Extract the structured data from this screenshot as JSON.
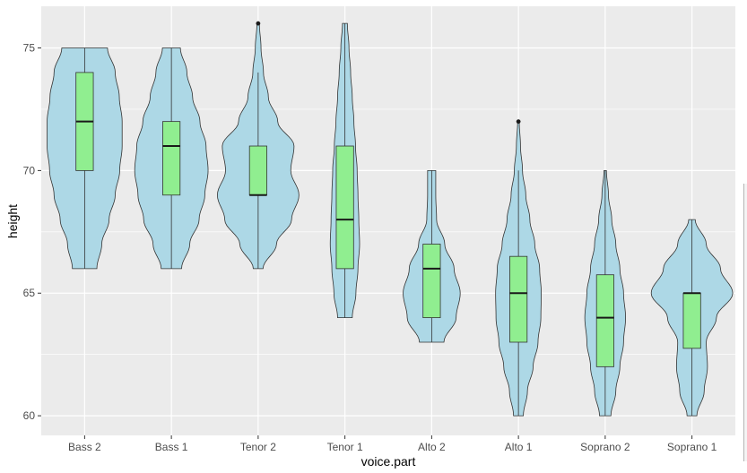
{
  "chart_data": {
    "type": "violin",
    "title": "",
    "xlabel": "voice.part",
    "ylabel": "height",
    "ylim": [
      59.2,
      76.7
    ],
    "yticks": [
      60,
      65,
      70,
      75
    ],
    "grid": true,
    "colors": {
      "panel": "#ebebeb",
      "grid": "#ffffff",
      "violin_fill": "#add8e6",
      "box_fill": "#90ee90",
      "outline": "#333333",
      "median": "#1a1a1a",
      "tick_text": "#4d4d4d"
    },
    "categories": [
      "Bass 2",
      "Bass 1",
      "Tenor 2",
      "Tenor 1",
      "Alto 2",
      "Alto 1",
      "Soprano 2",
      "Soprano 1"
    ],
    "groups": [
      {
        "name": "Bass 2",
        "box": {
          "min": 66,
          "q1": 70,
          "median": 72,
          "q3": 74,
          "max": 75
        },
        "outliers": [],
        "violin": {
          "y": [
            66,
            67,
            68,
            69,
            70,
            71,
            72,
            73,
            74,
            75
          ],
          "halfwidth": [
            0.3,
            0.42,
            0.6,
            0.75,
            0.86,
            0.92,
            0.92,
            0.85,
            0.75,
            0.56
          ]
        }
      },
      {
        "name": "Bass 1",
        "box": {
          "min": 66,
          "q1": 69,
          "median": 71,
          "q3": 72,
          "max": 75
        },
        "outliers": [],
        "violin": {
          "y": [
            66,
            67,
            68,
            69,
            70,
            71,
            72,
            73,
            74,
            75
          ],
          "halfwidth": [
            0.25,
            0.45,
            0.68,
            0.82,
            0.9,
            0.85,
            0.7,
            0.52,
            0.38,
            0.22
          ]
        }
      },
      {
        "name": "Tenor 2",
        "box": {
          "min": 66,
          "q1": 69,
          "median": 69,
          "q3": 71,
          "max": 74
        },
        "outliers": [
          76
        ],
        "violin": {
          "y": [
            66,
            67,
            68,
            69,
            70,
            71,
            72,
            73,
            74,
            75,
            76
          ],
          "halfwidth": [
            0.12,
            0.45,
            0.82,
            1.0,
            0.8,
            0.88,
            0.48,
            0.25,
            0.13,
            0.07,
            0.03
          ]
        }
      },
      {
        "name": "Tenor 1",
        "box": {
          "min": 64,
          "q1": 66,
          "median": 68,
          "q3": 71,
          "max": 76
        },
        "outliers": [],
        "violin": {
          "y": [
            64,
            65,
            66,
            67,
            68,
            69,
            70,
            71,
            72,
            73,
            74,
            75,
            76
          ],
          "halfwidth": [
            0.18,
            0.27,
            0.32,
            0.36,
            0.34,
            0.32,
            0.3,
            0.26,
            0.22,
            0.18,
            0.14,
            0.1,
            0.06
          ]
        }
      },
      {
        "name": "Alto 2",
        "box": {
          "min": 63,
          "q1": 64,
          "median": 66,
          "q3": 67,
          "max": 70
        },
        "outliers": [],
        "violin": {
          "y": [
            63,
            64,
            65,
            66,
            67,
            68,
            69,
            70
          ],
          "halfwidth": [
            0.3,
            0.6,
            0.7,
            0.55,
            0.32,
            0.12,
            0.1,
            0.1
          ]
        }
      },
      {
        "name": "Alto 1",
        "box": {
          "min": 60,
          "q1": 63,
          "median": 65,
          "q3": 66.5,
          "max": 70
        },
        "outliers": [
          72
        ],
        "violin": {
          "y": [
            60,
            61,
            62,
            63,
            64,
            65,
            66,
            67,
            68,
            69,
            70,
            71,
            72
          ],
          "halfwidth": [
            0.12,
            0.22,
            0.36,
            0.48,
            0.55,
            0.56,
            0.52,
            0.4,
            0.28,
            0.18,
            0.1,
            0.05,
            0.02
          ]
        }
      },
      {
        "name": "Soprano 2",
        "box": {
          "min": 60,
          "q1": 62,
          "median": 64,
          "q3": 65.75,
          "max": 70
        },
        "outliers": [],
        "violin": {
          "y": [
            60,
            61,
            62,
            63,
            64,
            65,
            66,
            67,
            68,
            69,
            70
          ],
          "halfwidth": [
            0.14,
            0.26,
            0.36,
            0.45,
            0.5,
            0.45,
            0.36,
            0.26,
            0.16,
            0.08,
            0.03
          ]
        }
      },
      {
        "name": "Soprano 1",
        "box": {
          "min": 60,
          "q1": 62.75,
          "median": 65,
          "q3": 65,
          "max": 68
        },
        "outliers": [],
        "violin": {
          "y": [
            60,
            61,
            62,
            63,
            64,
            65,
            66,
            67,
            68
          ],
          "halfwidth": [
            0.12,
            0.3,
            0.38,
            0.35,
            0.6,
            1.0,
            0.7,
            0.35,
            0.08
          ]
        }
      }
    ]
  }
}
